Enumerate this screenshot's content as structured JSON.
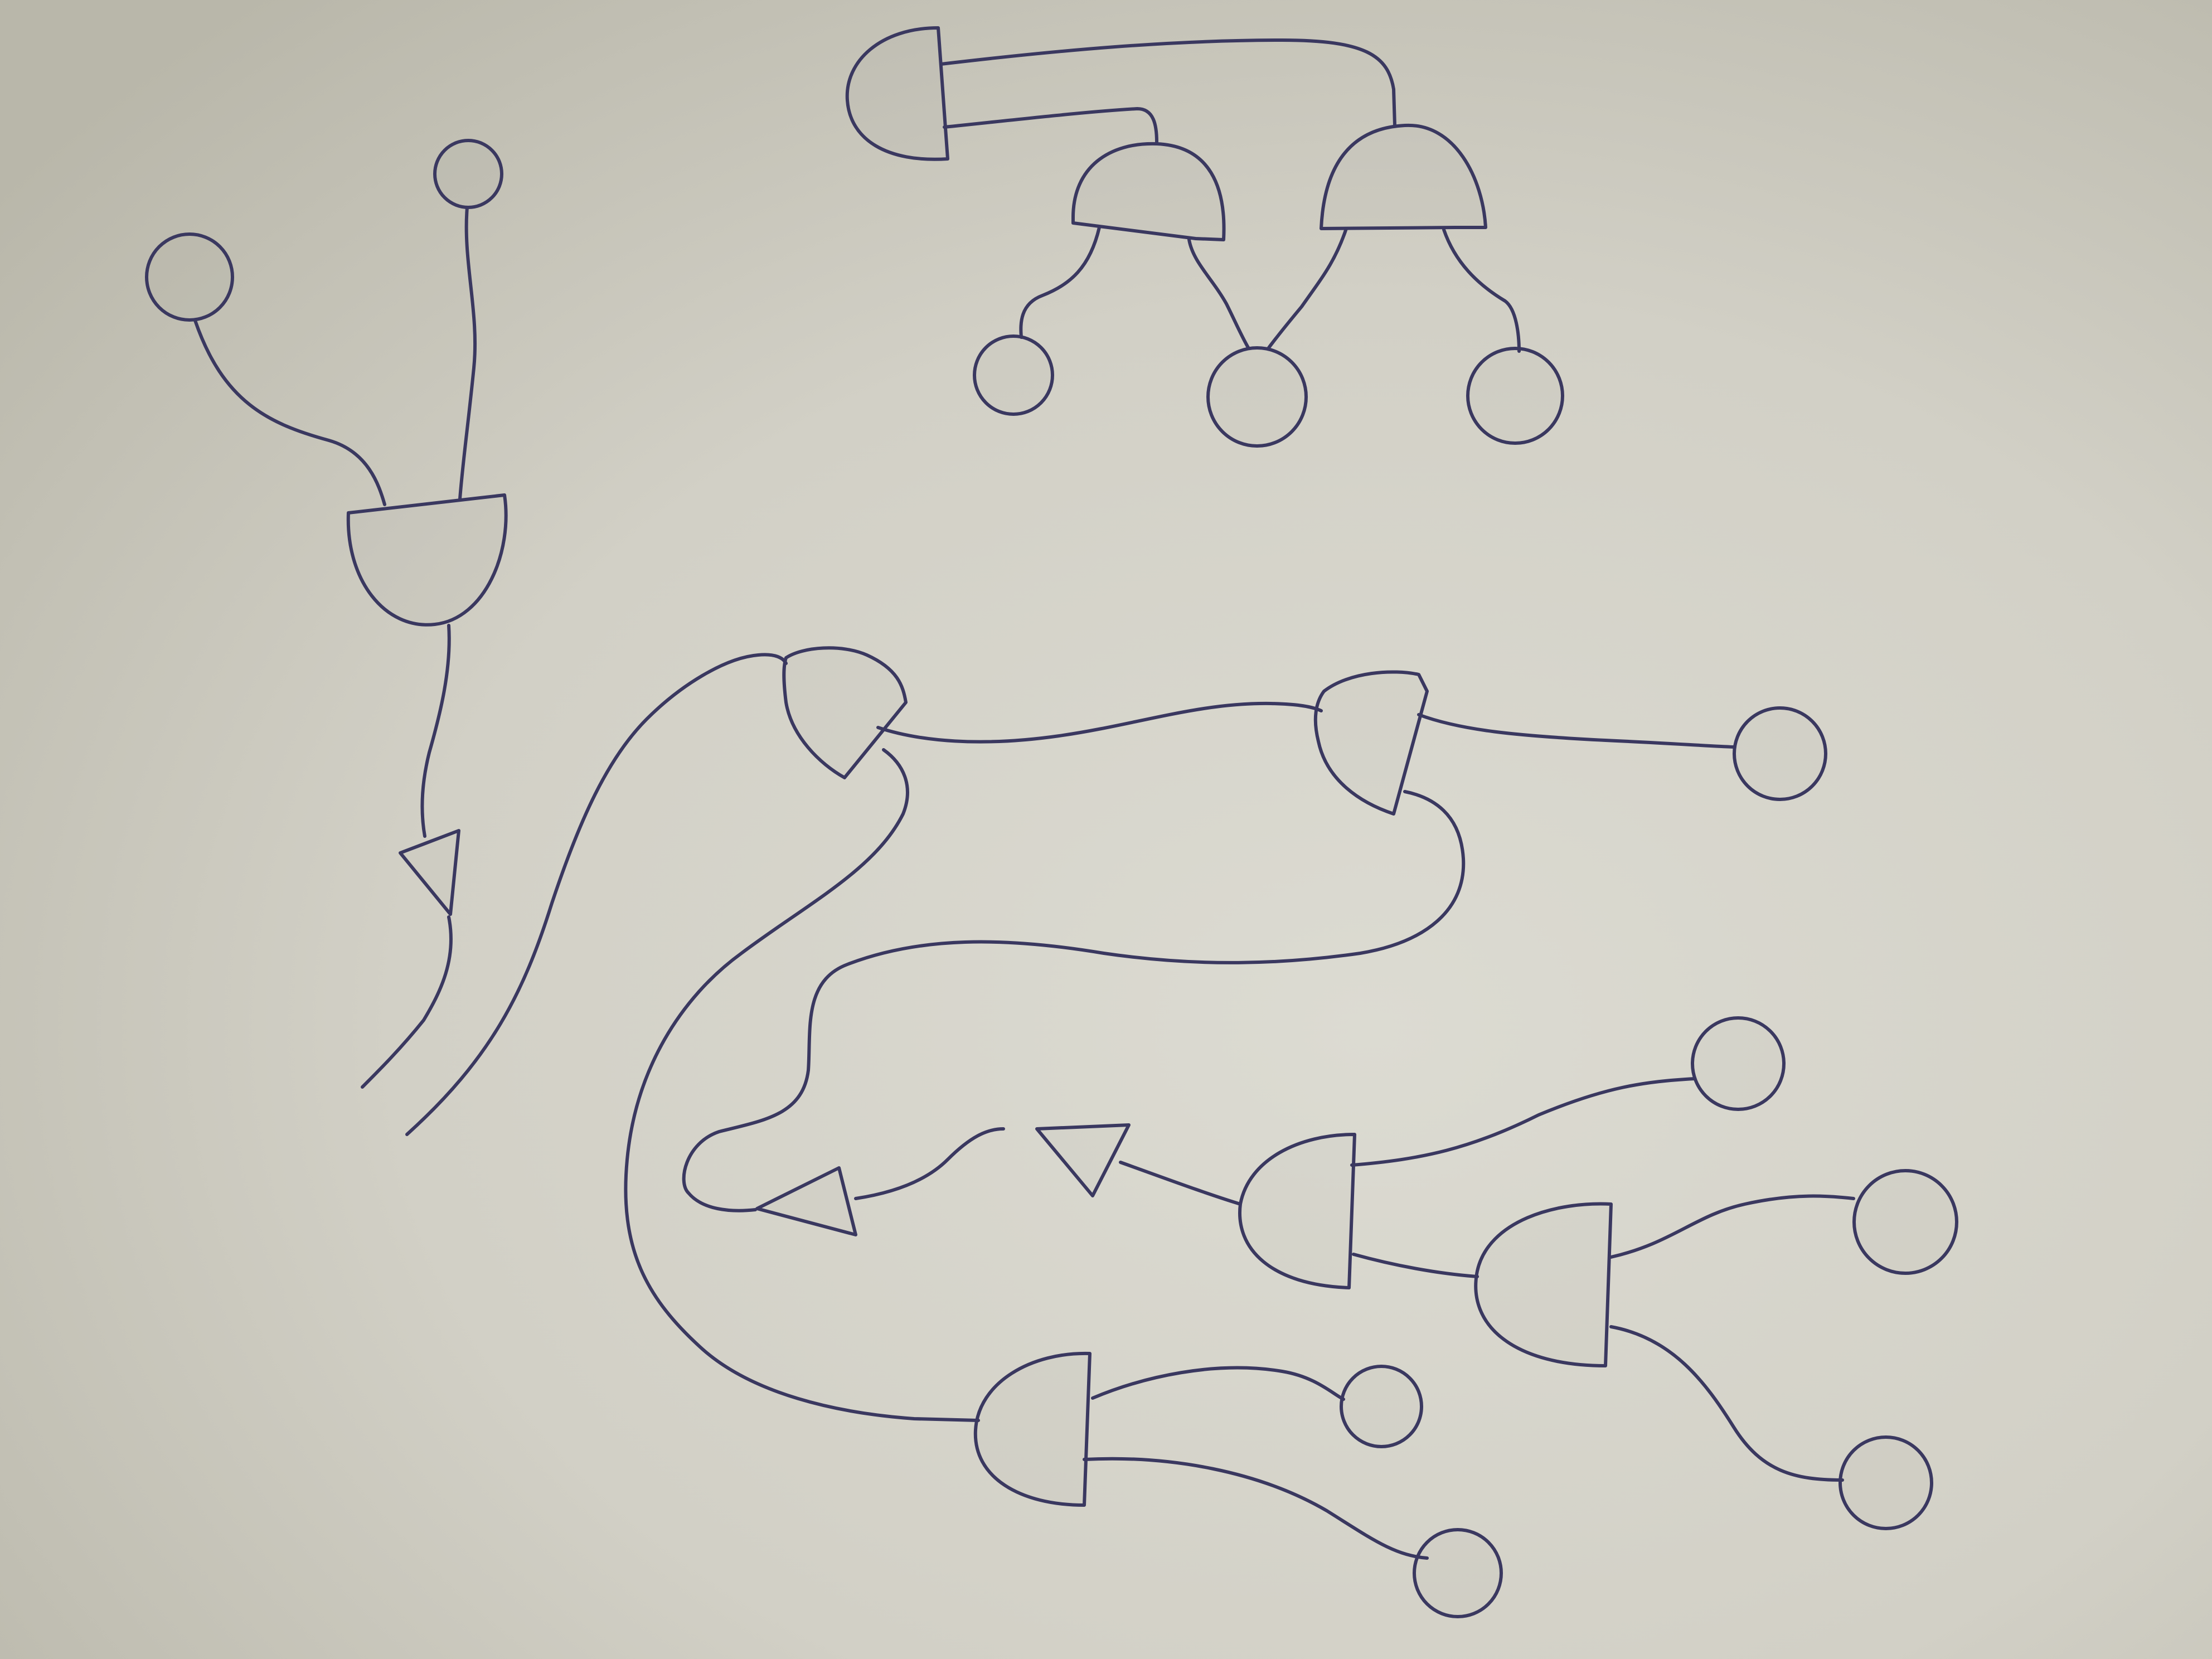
{
  "paper": {
    "background": "#cfcdc2",
    "light_tone": "#dcdbd2",
    "shadow_tone": "#b9b7aa",
    "ink_color": "#3a3860"
  },
  "diagram": {
    "description_note": "",
    "element_kinds": [
      "and-gate",
      "buffer-triangle",
      "input-circle",
      "wire"
    ],
    "group_count": 3,
    "labels": []
  }
}
